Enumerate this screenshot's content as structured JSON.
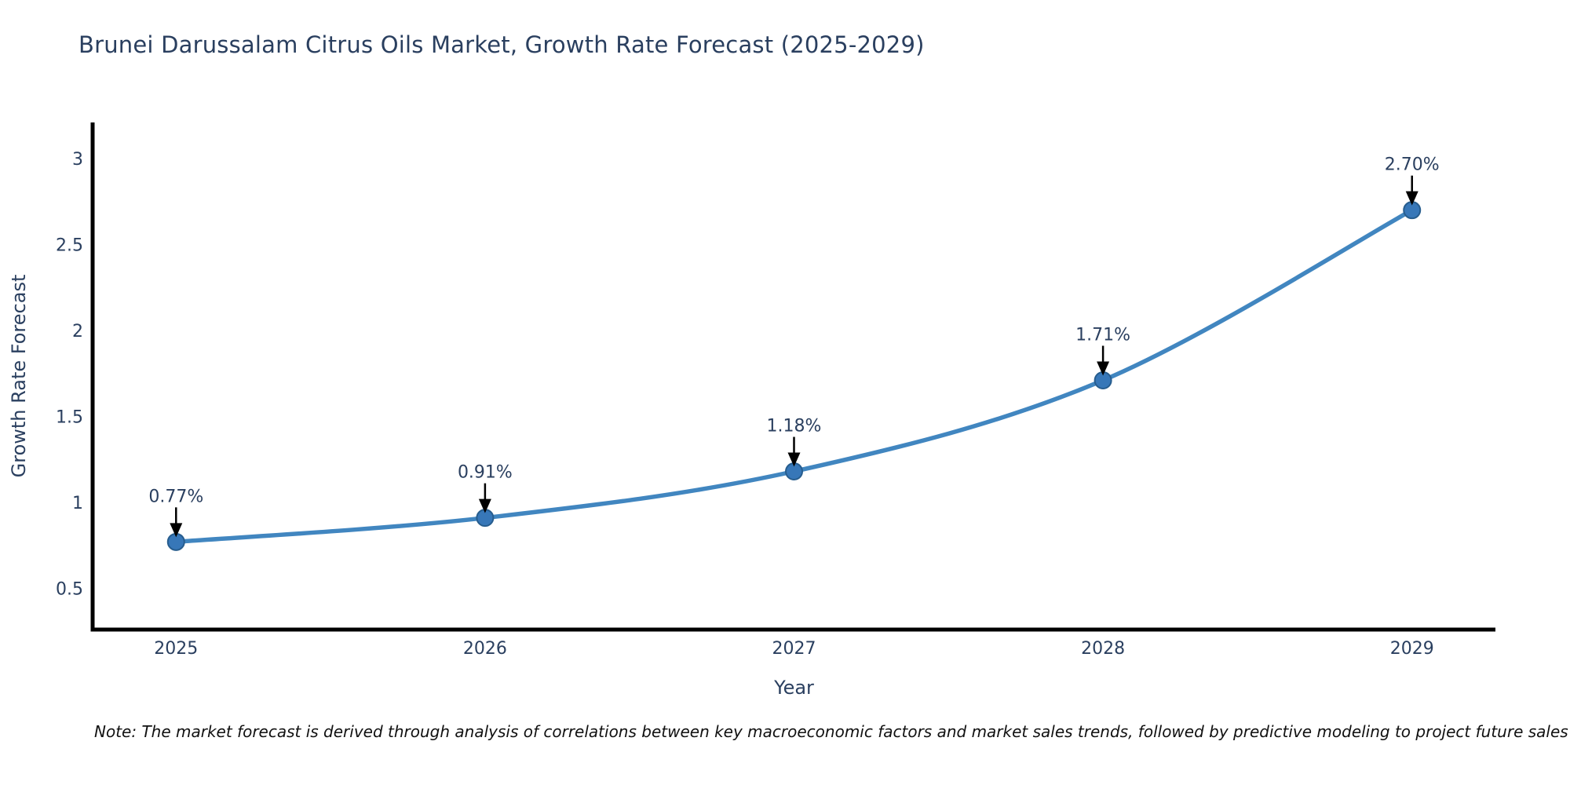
{
  "header": {
    "title": "Brunei Darussalam Citrus Oils Market, Growth Rate Forecast (2025-2029)"
  },
  "footnote": {
    "text": "Note: The market forecast is derived through analysis of correlations between key macroeconomic factors and market sales trends, followed by predictive modeling to project future sales"
  },
  "colors": {
    "background": "#ffffff",
    "title_text": "#2a3f5f",
    "axis_text": "#2a3f5f",
    "tick_text": "#2a3f5f",
    "annotation_text": "#2a3f5f",
    "note_text": "#111111",
    "line": "#4186c0",
    "marker_fill": "#3777b8",
    "marker_edge": "#275d8e",
    "axis_line": "#000000",
    "arrow": "#000000"
  },
  "chart_data": {
    "type": "line",
    "title": "Brunei Darussalam Citrus Oils Market, Growth Rate Forecast (2025-2029)",
    "xlabel": "Year",
    "ylabel": "Growth Rate Forecast",
    "x": [
      2025,
      2026,
      2027,
      2028,
      2029
    ],
    "series": [
      {
        "name": "Growth Rate Forecast",
        "values": [
          0.77,
          0.91,
          1.18,
          1.71,
          2.7
        ],
        "point_labels": [
          "0.77%",
          "0.91%",
          "1.18%",
          "1.71%",
          "2.70%"
        ]
      }
    ],
    "xtick_labels": [
      "2025",
      "2026",
      "2027",
      "2028",
      "2029"
    ],
    "ytick_values": [
      0.5,
      1,
      1.5,
      2,
      2.5,
      3
    ],
    "ytick_labels": [
      "0.5",
      "1",
      "1.5",
      "2",
      "2.5",
      "3"
    ],
    "xlim": [
      2024.73,
      2029.27
    ],
    "ylim": [
      0.26,
      3.21
    ],
    "grid": false,
    "legend": "none",
    "line_shape": "spline",
    "annotations_arrow": true
  }
}
